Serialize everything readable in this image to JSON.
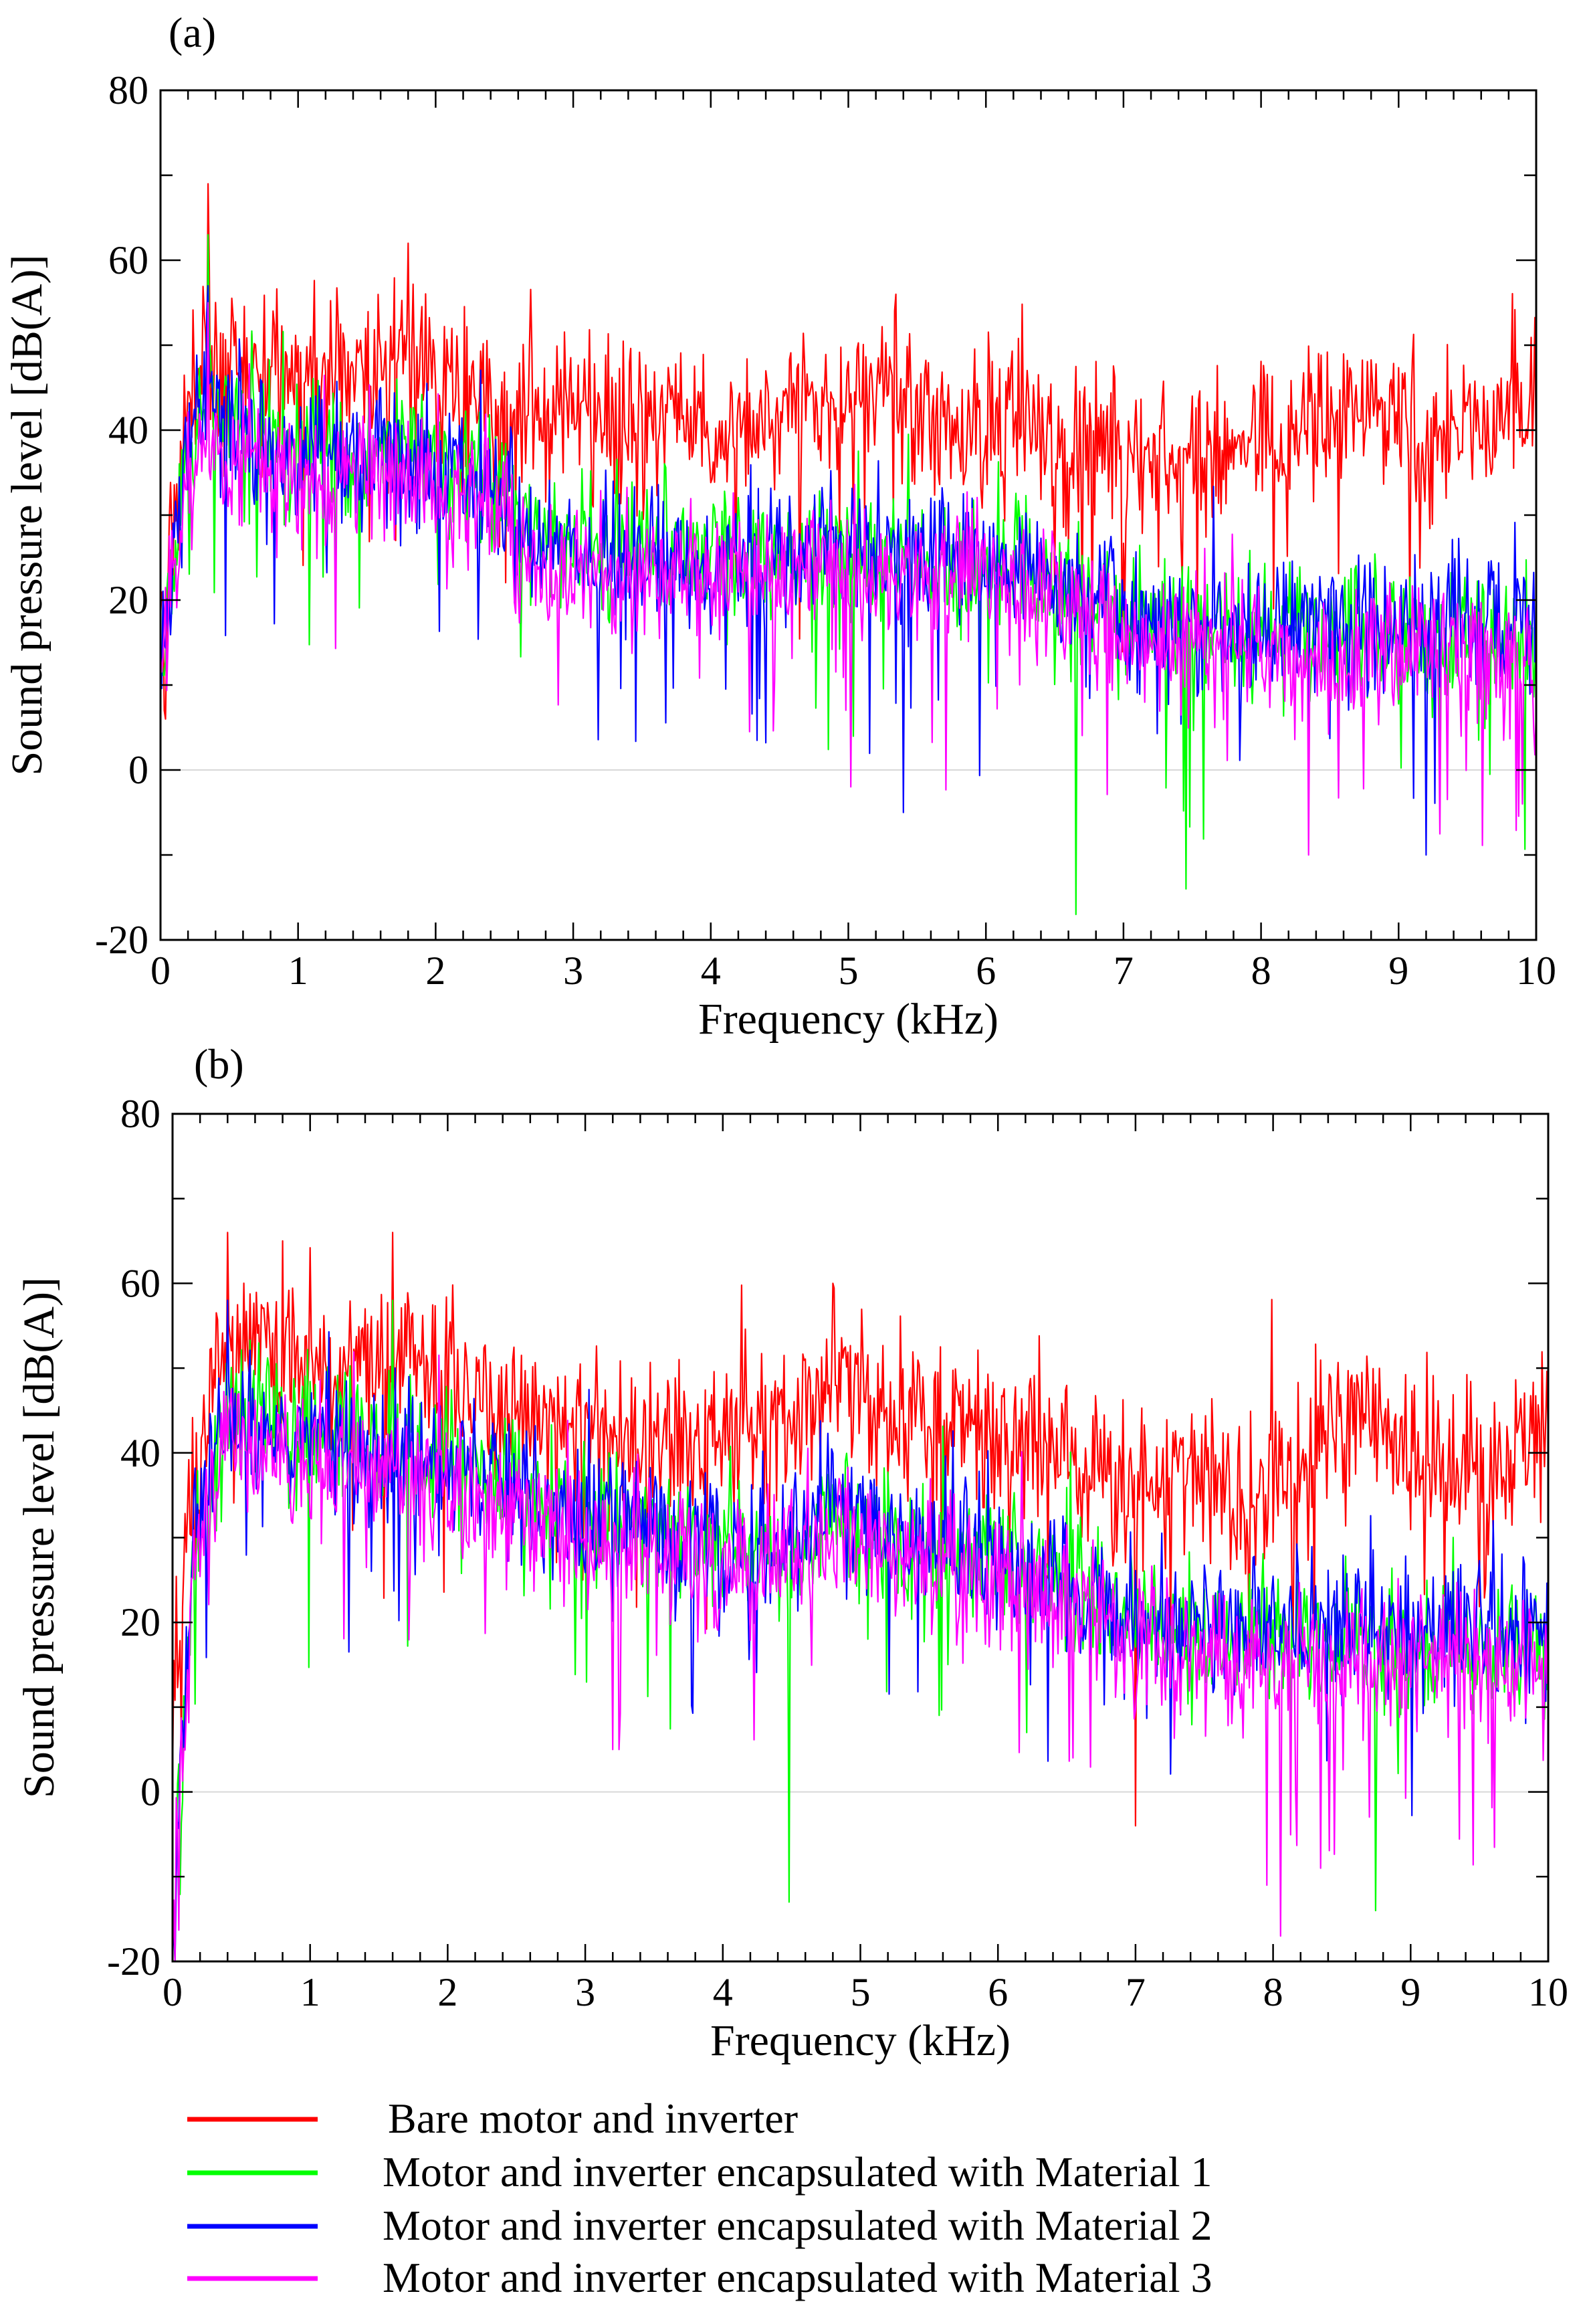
{
  "chart_data": [
    {
      "type": "line",
      "panel_label": "(a)",
      "xlabel": "Frequency (kHz)",
      "ylabel": "Sound pressure level [dB(A)]",
      "xlim": [
        0,
        10
      ],
      "ylim": [
        -20,
        80
      ],
      "xticks": [
        "0",
        "1",
        "2",
        "3",
        "4",
        "5",
        "6",
        "7",
        "8",
        "9",
        "10"
      ],
      "yticks": [
        "-20",
        "0",
        "20",
        "40",
        "60",
        "80"
      ],
      "grid": false,
      "series": [
        {
          "name": "Bare motor and inverter",
          "color": "#ff0000",
          "x": [
            0.0,
            0.2,
            0.35,
            0.5,
            1.0,
            1.5,
            1.8,
            2.0,
            2.5,
            3.0,
            3.5,
            4.0,
            4.5,
            5.0,
            5.3,
            5.5,
            6.0,
            6.2,
            6.5,
            7.0,
            7.5,
            8.0,
            8.5,
            8.8,
            9.0,
            9.3,
            9.6,
            10.0
          ],
          "values": [
            15,
            42,
            52,
            48,
            47,
            46,
            50,
            45,
            43,
            42,
            40,
            40,
            42,
            45,
            47,
            44,
            40,
            45,
            38,
            37,
            37,
            38,
            40,
            44,
            41,
            37,
            42,
            43
          ],
          "peaks": [
            [
              0.35,
              69
            ],
            [
              1.8,
              62
            ],
            [
              5.35,
              56
            ],
            [
              0.04,
              6
            ]
          ]
        },
        {
          "name": "Motor and inverter encapsulated with Material 1",
          "color": "#00ff00",
          "x": [
            0.0,
            0.2,
            0.35,
            0.5,
            1.0,
            1.5,
            2.0,
            2.5,
            2.7,
            3.0,
            3.5,
            4.0,
            4.5,
            5.0,
            5.5,
            6.0,
            6.5,
            7.0,
            7.5,
            8.0,
            8.5,
            9.0,
            9.5,
            10.0
          ],
          "values": [
            12,
            38,
            45,
            42,
            38,
            38,
            37,
            33,
            28,
            26,
            26,
            25,
            26,
            26,
            25,
            25,
            22,
            17,
            17,
            16,
            16,
            15,
            15,
            15
          ],
          "peaks": [
            [
              0.35,
              63
            ],
            [
              6.65,
              -17
            ],
            [
              7.45,
              -14
            ]
          ]
        },
        {
          "name": "Motor and inverter encapsulated with Material 2",
          "color": "#0000ff",
          "x": [
            0.0,
            0.2,
            0.35,
            0.5,
            1.0,
            1.5,
            2.0,
            2.5,
            2.7,
            3.0,
            3.5,
            4.0,
            4.5,
            5.0,
            5.5,
            6.0,
            6.5,
            7.0,
            7.5,
            8.0,
            8.5,
            9.0,
            9.5,
            10.0
          ],
          "values": [
            12,
            38,
            44,
            40,
            37,
            37,
            36,
            32,
            26,
            25,
            25,
            24,
            25,
            26,
            25,
            25,
            22,
            18,
            17,
            17,
            18,
            17,
            18,
            18
          ],
          "peaks": [
            [
              0.35,
              57
            ],
            [
              5.4,
              -5
            ],
            [
              9.2,
              -10
            ]
          ]
        },
        {
          "name": "Motor and inverter encapsulated with Material 3",
          "color": "#ff00ff",
          "x": [
            0.0,
            0.2,
            0.35,
            0.5,
            1.0,
            1.5,
            2.0,
            2.5,
            2.7,
            3.0,
            3.5,
            4.0,
            4.5,
            5.0,
            5.5,
            6.0,
            6.5,
            7.0,
            7.5,
            8.0,
            8.5,
            9.0,
            9.5,
            10.0
          ],
          "values": [
            10,
            35,
            40,
            37,
            34,
            34,
            34,
            30,
            24,
            23,
            23,
            22,
            23,
            24,
            23,
            23,
            20,
            15,
            15,
            14,
            14,
            14,
            14,
            13
          ],
          "peaks": [
            [
              0.35,
              55
            ],
            [
              8.35,
              -10
            ],
            [
              9.9,
              -4
            ]
          ]
        }
      ]
    },
    {
      "type": "line",
      "panel_label": "(b)",
      "xlabel": "Frequency (kHz)",
      "ylabel": "Sound pressure level [dB(A)]",
      "xlim": [
        0,
        10
      ],
      "ylim": [
        -20,
        80
      ],
      "xticks": [
        "0",
        "1",
        "2",
        "3",
        "4",
        "5",
        "6",
        "7",
        "8",
        "9",
        "10"
      ],
      "yticks": [
        "-20",
        "0",
        "20",
        "40",
        "60",
        "80"
      ],
      "grid": false,
      "series": [
        {
          "name": "Bare motor and inverter",
          "color": "#ff0000",
          "x": [
            0.0,
            0.15,
            0.4,
            0.8,
            1.0,
            1.6,
            2.0,
            2.5,
            3.0,
            3.5,
            4.0,
            4.5,
            4.8,
            5.0,
            5.5,
            6.0,
            6.5,
            7.0,
            7.5,
            7.8,
            8.0,
            8.5,
            8.8,
            9.0,
            9.5,
            10.0
          ],
          "values": [
            10,
            38,
            52,
            50,
            50,
            50,
            48,
            45,
            43,
            40,
            42,
            44,
            48,
            46,
            44,
            43,
            40,
            36,
            36,
            34,
            36,
            44,
            44,
            38,
            38,
            43
          ],
          "peaks": [
            [
              0.4,
              66
            ],
            [
              0.8,
              65
            ],
            [
              1.6,
              66
            ],
            [
              4.8,
              60
            ],
            [
              7.0,
              -4
            ]
          ]
        },
        {
          "name": "Motor and inverter encapsulated with Material 1",
          "color": "#00ff00",
          "x": [
            0.0,
            0.15,
            0.4,
            1.0,
            1.5,
            2.0,
            2.5,
            3.0,
            3.5,
            4.0,
            4.5,
            4.8,
            5.0,
            5.5,
            6.0,
            6.5,
            7.0,
            7.5,
            8.0,
            8.5,
            9.0,
            9.5,
            10.0
          ],
          "values": [
            -15,
            30,
            45,
            42,
            42,
            40,
            36,
            33,
            32,
            29,
            28,
            32,
            31,
            28,
            27,
            24,
            20,
            18,
            18,
            18,
            17,
            17,
            17
          ],
          "peaks": [
            [
              1.6,
              58
            ],
            [
              4.48,
              -13
            ],
            [
              8.75,
              -14
            ],
            [
              0.02,
              -20
            ]
          ]
        },
        {
          "name": "Motor and inverter encapsulated with Material 2",
          "color": "#0000ff",
          "x": [
            0.0,
            0.15,
            0.4,
            1.0,
            1.5,
            2.0,
            2.5,
            3.0,
            3.5,
            4.0,
            4.5,
            4.8,
            5.0,
            5.5,
            6.0,
            6.5,
            7.0,
            7.5,
            8.0,
            8.5,
            9.0,
            9.5,
            10.0
          ],
          "values": [
            -15,
            30,
            44,
            41,
            41,
            39,
            35,
            32,
            31,
            28,
            30,
            34,
            31,
            29,
            27,
            24,
            20,
            19,
            19,
            19,
            19,
            20,
            20
          ],
          "peaks": [
            [
              0.4,
              58
            ],
            [
              9.6,
              32
            ],
            [
              0.02,
              -20
            ]
          ]
        },
        {
          "name": "Motor and inverter encapsulated with Material 3",
          "color": "#ff00ff",
          "x": [
            0.0,
            0.15,
            0.4,
            1.0,
            1.5,
            2.0,
            2.5,
            3.0,
            3.5,
            4.0,
            4.5,
            4.8,
            5.0,
            5.5,
            6.0,
            6.5,
            7.0,
            7.5,
            8.0,
            8.5,
            9.0,
            9.5,
            10.0
          ],
          "values": [
            -15,
            28,
            42,
            38,
            38,
            36,
            33,
            30,
            29,
            26,
            27,
            31,
            28,
            26,
            25,
            22,
            17,
            16,
            15,
            15,
            15,
            15,
            14
          ],
          "peaks": [
            [
              8.05,
              -17
            ],
            [
              7.95,
              -11
            ],
            [
              8.35,
              -9
            ],
            [
              0.02,
              -20
            ]
          ]
        }
      ]
    }
  ],
  "legend": {
    "entries": [
      {
        "label": "Bare motor and inverter",
        "color": "#ff0000"
      },
      {
        "label": "Motor and inverter encapsulated with Material 1",
        "color": "#00ff00"
      },
      {
        "label": "Motor and inverter encapsulated with Material 2",
        "color": "#0000ff"
      },
      {
        "label": "Motor and inverter encapsulated with Material 3",
        "color": "#ff00ff"
      }
    ]
  }
}
